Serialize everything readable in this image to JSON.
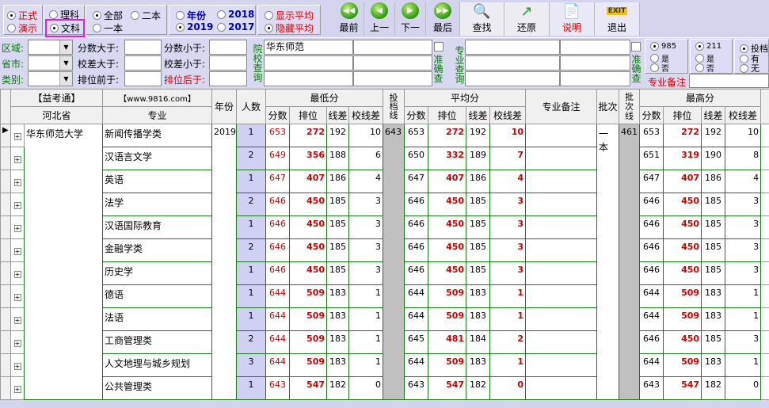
{
  "toolbar": {
    "mode": {
      "options": [
        "正式",
        "演示"
      ],
      "selected": "正式"
    },
    "subject": {
      "options": [
        "理科",
        "文科"
      ],
      "selected": "文科"
    },
    "batch": {
      "options": [
        "全部",
        "二本",
        "一本"
      ],
      "selected": "全部"
    },
    "year": {
      "options": [
        "年份",
        "2018",
        "2019",
        "2017"
      ],
      "selected": "2019"
    },
    "average": {
      "options": [
        "显示平均",
        "隐藏平均"
      ],
      "selected": "隐藏平均"
    },
    "buttons": [
      {
        "label": "最前",
        "icon": "first-icon"
      },
      {
        "label": "上一",
        "icon": "prev-icon"
      },
      {
        "label": "下一",
        "icon": "next-icon"
      },
      {
        "label": "最后",
        "icon": "last-icon"
      },
      {
        "label": "查找",
        "icon": "search-icon"
      },
      {
        "label": "还原",
        "icon": "restore-icon"
      },
      {
        "label": "说明",
        "icon": "help-doc-icon"
      },
      {
        "label": "退出",
        "icon": "exit-icon"
      }
    ],
    "exit_badge": "EXIT"
  },
  "filters": {
    "region": "区域:",
    "province": "省市:",
    "category": "类别:",
    "score_gt": "分数大于:",
    "score_lt": "分数小于:",
    "diff_gt": "校差大于:",
    "diff_lt": "校差小于:",
    "rank_before": "排位前于:",
    "rank_after": "排位后于:",
    "school_query": "院校查询",
    "school_value": "华东师范",
    "exact": "准确查",
    "major_query": "专业查询",
    "major_note": "专业备注",
    "r985": {
      "options": [
        "985",
        "是",
        "否"
      ],
      "selected": "985"
    },
    "r211": {
      "options": [
        "211",
        "是",
        "否"
      ],
      "selected": "211"
    },
    "rtd": {
      "options": [
        "投档",
        "有",
        "无"
      ],
      "selected": "投档"
    }
  },
  "grid": {
    "brand": "【益考通】",
    "site": "【www.9816.com】",
    "province": "河北省",
    "major": "专业",
    "year": "年份",
    "count": "人数",
    "min": "最低分",
    "avg": "平均分",
    "max": "最高分",
    "score": "分数",
    "rank": "排位",
    "line_diff": "线差",
    "school_diff": "校线差",
    "tdx": "投档线",
    "note": "专业备注",
    "batch": "批次",
    "batch_line": "批次线",
    "university": "华东师范大学",
    "year_value": "2019",
    "tdx_value": "643",
    "batch_value": "一本",
    "batch_line_value": "461",
    "rows": [
      [
        "新闻传播学类",
        "1",
        "653",
        "272",
        "192",
        "10",
        "653",
        "272",
        "192",
        "10",
        "653",
        "272",
        "192",
        "10"
      ],
      [
        "汉语言文学",
        "2",
        "649",
        "356",
        "188",
        "6",
        "650",
        "332",
        "189",
        "7",
        "651",
        "319",
        "190",
        "8"
      ],
      [
        "英语",
        "1",
        "647",
        "407",
        "186",
        "4",
        "647",
        "407",
        "186",
        "4",
        "647",
        "407",
        "186",
        "4"
      ],
      [
        "法学",
        "2",
        "646",
        "450",
        "185",
        "3",
        "646",
        "450",
        "185",
        "3",
        "646",
        "450",
        "185",
        "3"
      ],
      [
        "汉语国际教育",
        "1",
        "646",
        "450",
        "185",
        "3",
        "646",
        "450",
        "185",
        "3",
        "646",
        "450",
        "185",
        "3"
      ],
      [
        "金融学类",
        "2",
        "646",
        "450",
        "185",
        "3",
        "646",
        "450",
        "185",
        "3",
        "646",
        "450",
        "185",
        "3"
      ],
      [
        "历史学",
        "1",
        "646",
        "450",
        "185",
        "3",
        "646",
        "450",
        "185",
        "3",
        "646",
        "450",
        "185",
        "3"
      ],
      [
        "德语",
        "1",
        "644",
        "509",
        "183",
        "1",
        "644",
        "509",
        "183",
        "1",
        "644",
        "509",
        "183",
        "1"
      ],
      [
        "法语",
        "1",
        "644",
        "509",
        "183",
        "1",
        "644",
        "509",
        "183",
        "1",
        "644",
        "509",
        "183",
        "1"
      ],
      [
        "工商管理类",
        "2",
        "644",
        "509",
        "183",
        "1",
        "645",
        "481",
        "184",
        "2",
        "646",
        "450",
        "185",
        "3"
      ],
      [
        "人文地理与城乡规划",
        "3",
        "644",
        "509",
        "183",
        "1",
        "644",
        "509",
        "183",
        "1",
        "644",
        "509",
        "183",
        "1"
      ],
      [
        "公共管理类",
        "1",
        "643",
        "547",
        "182",
        "0",
        "643",
        "547",
        "182",
        "0",
        "643",
        "547",
        "182",
        "0"
      ]
    ]
  },
  "colors": {
    "highlight_box": "#e020e0",
    "rank_red": "#d00000",
    "label_green": "#008000"
  }
}
